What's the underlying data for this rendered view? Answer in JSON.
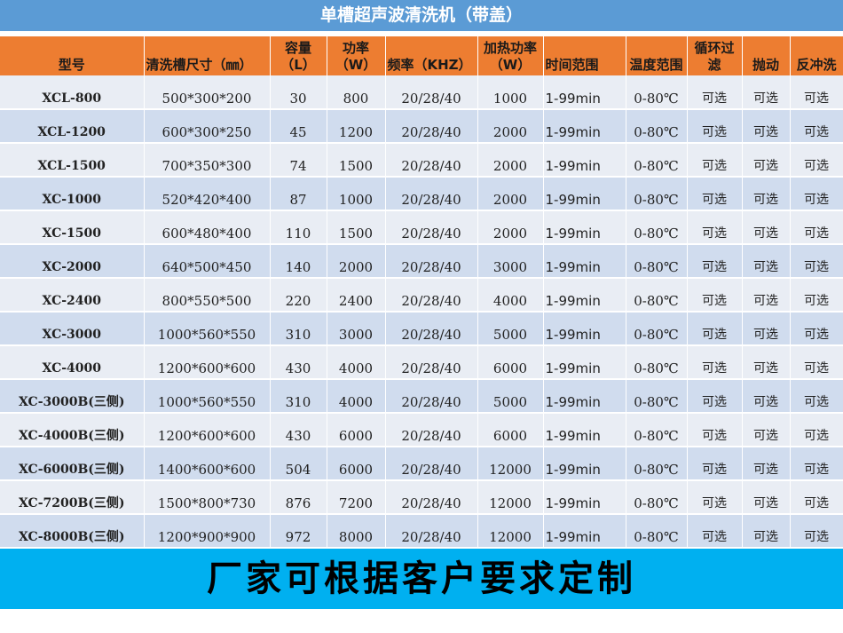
{
  "title": "单槽超声波清洗机（带盖）",
  "table": {
    "headers": [
      "型号",
      "清洗槽尺寸（㎜）",
      "容量（L）",
      "功率（W）",
      "频率（KHZ）",
      "加热功率（W）",
      "时间范围",
      "温度范围",
      "循环过滤",
      "抛动",
      "反冲洗"
    ],
    "rows": [
      [
        "XCL-800",
        "500*300*200",
        "30",
        "800",
        "20/28/40",
        "1000",
        "1-99min",
        "0-80℃",
        "可选",
        "可选",
        "可选"
      ],
      [
        "XCL-1200",
        "600*300*250",
        "45",
        "1200",
        "20/28/40",
        "2000",
        "1-99min",
        "0-80℃",
        "可选",
        "可选",
        "可选"
      ],
      [
        "XCL-1500",
        "700*350*300",
        "74",
        "1500",
        "20/28/40",
        "2000",
        "1-99min",
        "0-80℃",
        "可选",
        "可选",
        "可选"
      ],
      [
        "XC-1000",
        "520*420*400",
        "87",
        "1000",
        "20/28/40",
        "2000",
        "1-99min",
        "0-80℃",
        "可选",
        "可选",
        "可选"
      ],
      [
        "XC-1500",
        "600*480*400",
        "110",
        "1500",
        "20/28/40",
        "2000",
        "1-99min",
        "0-80℃",
        "可选",
        "可选",
        "可选"
      ],
      [
        "XC-2000",
        "640*500*450",
        "140",
        "2000",
        "20/28/40",
        "3000",
        "1-99min",
        "0-80℃",
        "可选",
        "可选",
        "可选"
      ],
      [
        "XC-2400",
        "800*550*500",
        "220",
        "2400",
        "20/28/40",
        "4000",
        "1-99min",
        "0-80℃",
        "可选",
        "可选",
        "可选"
      ],
      [
        "XC-3000",
        "1000*560*550",
        "310",
        "3000",
        "20/28/40",
        "5000",
        "1-99min",
        "0-80℃",
        "可选",
        "可选",
        "可选"
      ],
      [
        "XC-4000",
        "1200*600*600",
        "430",
        "4000",
        "20/28/40",
        "6000",
        "1-99min",
        "0-80℃",
        "可选",
        "可选",
        "可选"
      ],
      [
        "XC-3000B(三侧)",
        "1000*560*550",
        "310",
        "4000",
        "20/28/40",
        "5000",
        "1-99min",
        "0-80℃",
        "可选",
        "可选",
        "可选"
      ],
      [
        "XC-4000B(三侧)",
        "1200*600*600",
        "430",
        "6000",
        "20/28/40",
        "6000",
        "1-99min",
        "0-80℃",
        "可选",
        "可选",
        "可选"
      ],
      [
        "XC-6000B(三侧)",
        "1400*600*600",
        "504",
        "6000",
        "20/28/40",
        "12000",
        "1-99min",
        "0-80℃",
        "可选",
        "可选",
        "可选"
      ],
      [
        "XC-7200B(三侧)",
        "1500*800*730",
        "876",
        "7200",
        "20/28/40",
        "12000",
        "1-99min",
        "0-80℃",
        "可选",
        "可选",
        "可选"
      ],
      [
        "XC-8000B(三侧)",
        "1200*900*900",
        "972",
        "8000",
        "20/28/40",
        "12000",
        "1-99min",
        "0-80℃",
        "可选",
        "可选",
        "可选"
      ]
    ]
  },
  "footer": "厂家可根据客户要求定制",
  "colors": {
    "title_bg": "#5b9bd5",
    "header_bg": "#ed7d31",
    "row_light": "#e9edf4",
    "row_dark": "#d0dcee",
    "footer_bg": "#00b0f0"
  }
}
